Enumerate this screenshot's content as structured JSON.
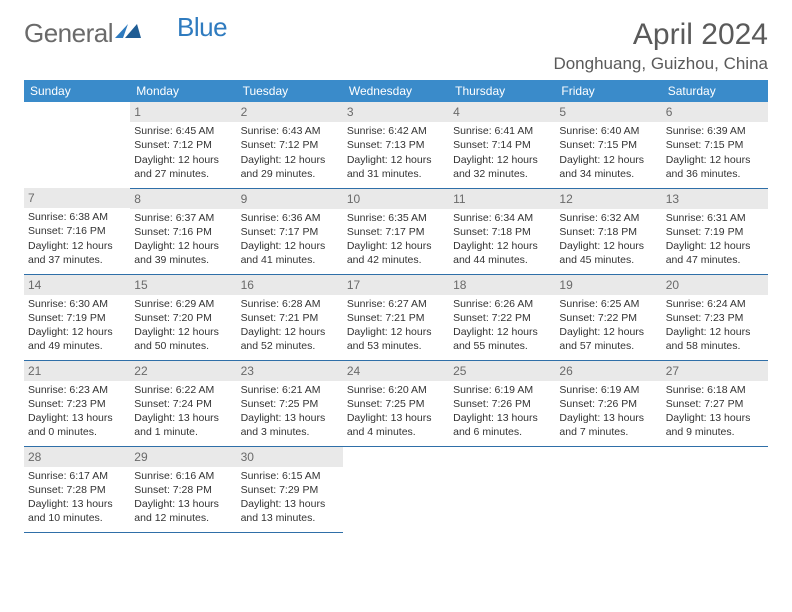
{
  "brand": {
    "part1": "General",
    "part2": "Blue"
  },
  "title": {
    "month": "April 2024",
    "location": "Donghuang, Guizhou, China"
  },
  "colors": {
    "header_bg": "#3a8bca",
    "daynum_bg": "#e9e9e9",
    "text_muted": "#6a6a6a",
    "rule": "#2f6fa8"
  },
  "weekdays": [
    "Sunday",
    "Monday",
    "Tuesday",
    "Wednesday",
    "Thursday",
    "Friday",
    "Saturday"
  ],
  "weeks": [
    [
      null,
      {
        "n": "1",
        "sr": "6:45 AM",
        "ss": "7:12 PM",
        "dl": "12 hours and 27 minutes."
      },
      {
        "n": "2",
        "sr": "6:43 AM",
        "ss": "7:12 PM",
        "dl": "12 hours and 29 minutes."
      },
      {
        "n": "3",
        "sr": "6:42 AM",
        "ss": "7:13 PM",
        "dl": "12 hours and 31 minutes."
      },
      {
        "n": "4",
        "sr": "6:41 AM",
        "ss": "7:14 PM",
        "dl": "12 hours and 32 minutes."
      },
      {
        "n": "5",
        "sr": "6:40 AM",
        "ss": "7:15 PM",
        "dl": "12 hours and 34 minutes."
      },
      {
        "n": "6",
        "sr": "6:39 AM",
        "ss": "7:15 PM",
        "dl": "12 hours and 36 minutes."
      }
    ],
    [
      {
        "n": "7",
        "sr": "6:38 AM",
        "ss": "7:16 PM",
        "dl": "12 hours and 37 minutes."
      },
      {
        "n": "8",
        "sr": "6:37 AM",
        "ss": "7:16 PM",
        "dl": "12 hours and 39 minutes."
      },
      {
        "n": "9",
        "sr": "6:36 AM",
        "ss": "7:17 PM",
        "dl": "12 hours and 41 minutes."
      },
      {
        "n": "10",
        "sr": "6:35 AM",
        "ss": "7:17 PM",
        "dl": "12 hours and 42 minutes."
      },
      {
        "n": "11",
        "sr": "6:34 AM",
        "ss": "7:18 PM",
        "dl": "12 hours and 44 minutes."
      },
      {
        "n": "12",
        "sr": "6:32 AM",
        "ss": "7:18 PM",
        "dl": "12 hours and 45 minutes."
      },
      {
        "n": "13",
        "sr": "6:31 AM",
        "ss": "7:19 PM",
        "dl": "12 hours and 47 minutes."
      }
    ],
    [
      {
        "n": "14",
        "sr": "6:30 AM",
        "ss": "7:19 PM",
        "dl": "12 hours and 49 minutes."
      },
      {
        "n": "15",
        "sr": "6:29 AM",
        "ss": "7:20 PM",
        "dl": "12 hours and 50 minutes."
      },
      {
        "n": "16",
        "sr": "6:28 AM",
        "ss": "7:21 PM",
        "dl": "12 hours and 52 minutes."
      },
      {
        "n": "17",
        "sr": "6:27 AM",
        "ss": "7:21 PM",
        "dl": "12 hours and 53 minutes."
      },
      {
        "n": "18",
        "sr": "6:26 AM",
        "ss": "7:22 PM",
        "dl": "12 hours and 55 minutes."
      },
      {
        "n": "19",
        "sr": "6:25 AM",
        "ss": "7:22 PM",
        "dl": "12 hours and 57 minutes."
      },
      {
        "n": "20",
        "sr": "6:24 AM",
        "ss": "7:23 PM",
        "dl": "12 hours and 58 minutes."
      }
    ],
    [
      {
        "n": "21",
        "sr": "6:23 AM",
        "ss": "7:23 PM",
        "dl": "13 hours and 0 minutes."
      },
      {
        "n": "22",
        "sr": "6:22 AM",
        "ss": "7:24 PM",
        "dl": "13 hours and 1 minute."
      },
      {
        "n": "23",
        "sr": "6:21 AM",
        "ss": "7:25 PM",
        "dl": "13 hours and 3 minutes."
      },
      {
        "n": "24",
        "sr": "6:20 AM",
        "ss": "7:25 PM",
        "dl": "13 hours and 4 minutes."
      },
      {
        "n": "25",
        "sr": "6:19 AM",
        "ss": "7:26 PM",
        "dl": "13 hours and 6 minutes."
      },
      {
        "n": "26",
        "sr": "6:19 AM",
        "ss": "7:26 PM",
        "dl": "13 hours and 7 minutes."
      },
      {
        "n": "27",
        "sr": "6:18 AM",
        "ss": "7:27 PM",
        "dl": "13 hours and 9 minutes."
      }
    ],
    [
      {
        "n": "28",
        "sr": "6:17 AM",
        "ss": "7:28 PM",
        "dl": "13 hours and 10 minutes."
      },
      {
        "n": "29",
        "sr": "6:16 AM",
        "ss": "7:28 PM",
        "dl": "13 hours and 12 minutes."
      },
      {
        "n": "30",
        "sr": "6:15 AM",
        "ss": "7:29 PM",
        "dl": "13 hours and 13 minutes."
      },
      null,
      null,
      null,
      null
    ]
  ],
  "labels": {
    "sunrise": "Sunrise:",
    "sunset": "Sunset:",
    "daylight": "Daylight:"
  }
}
